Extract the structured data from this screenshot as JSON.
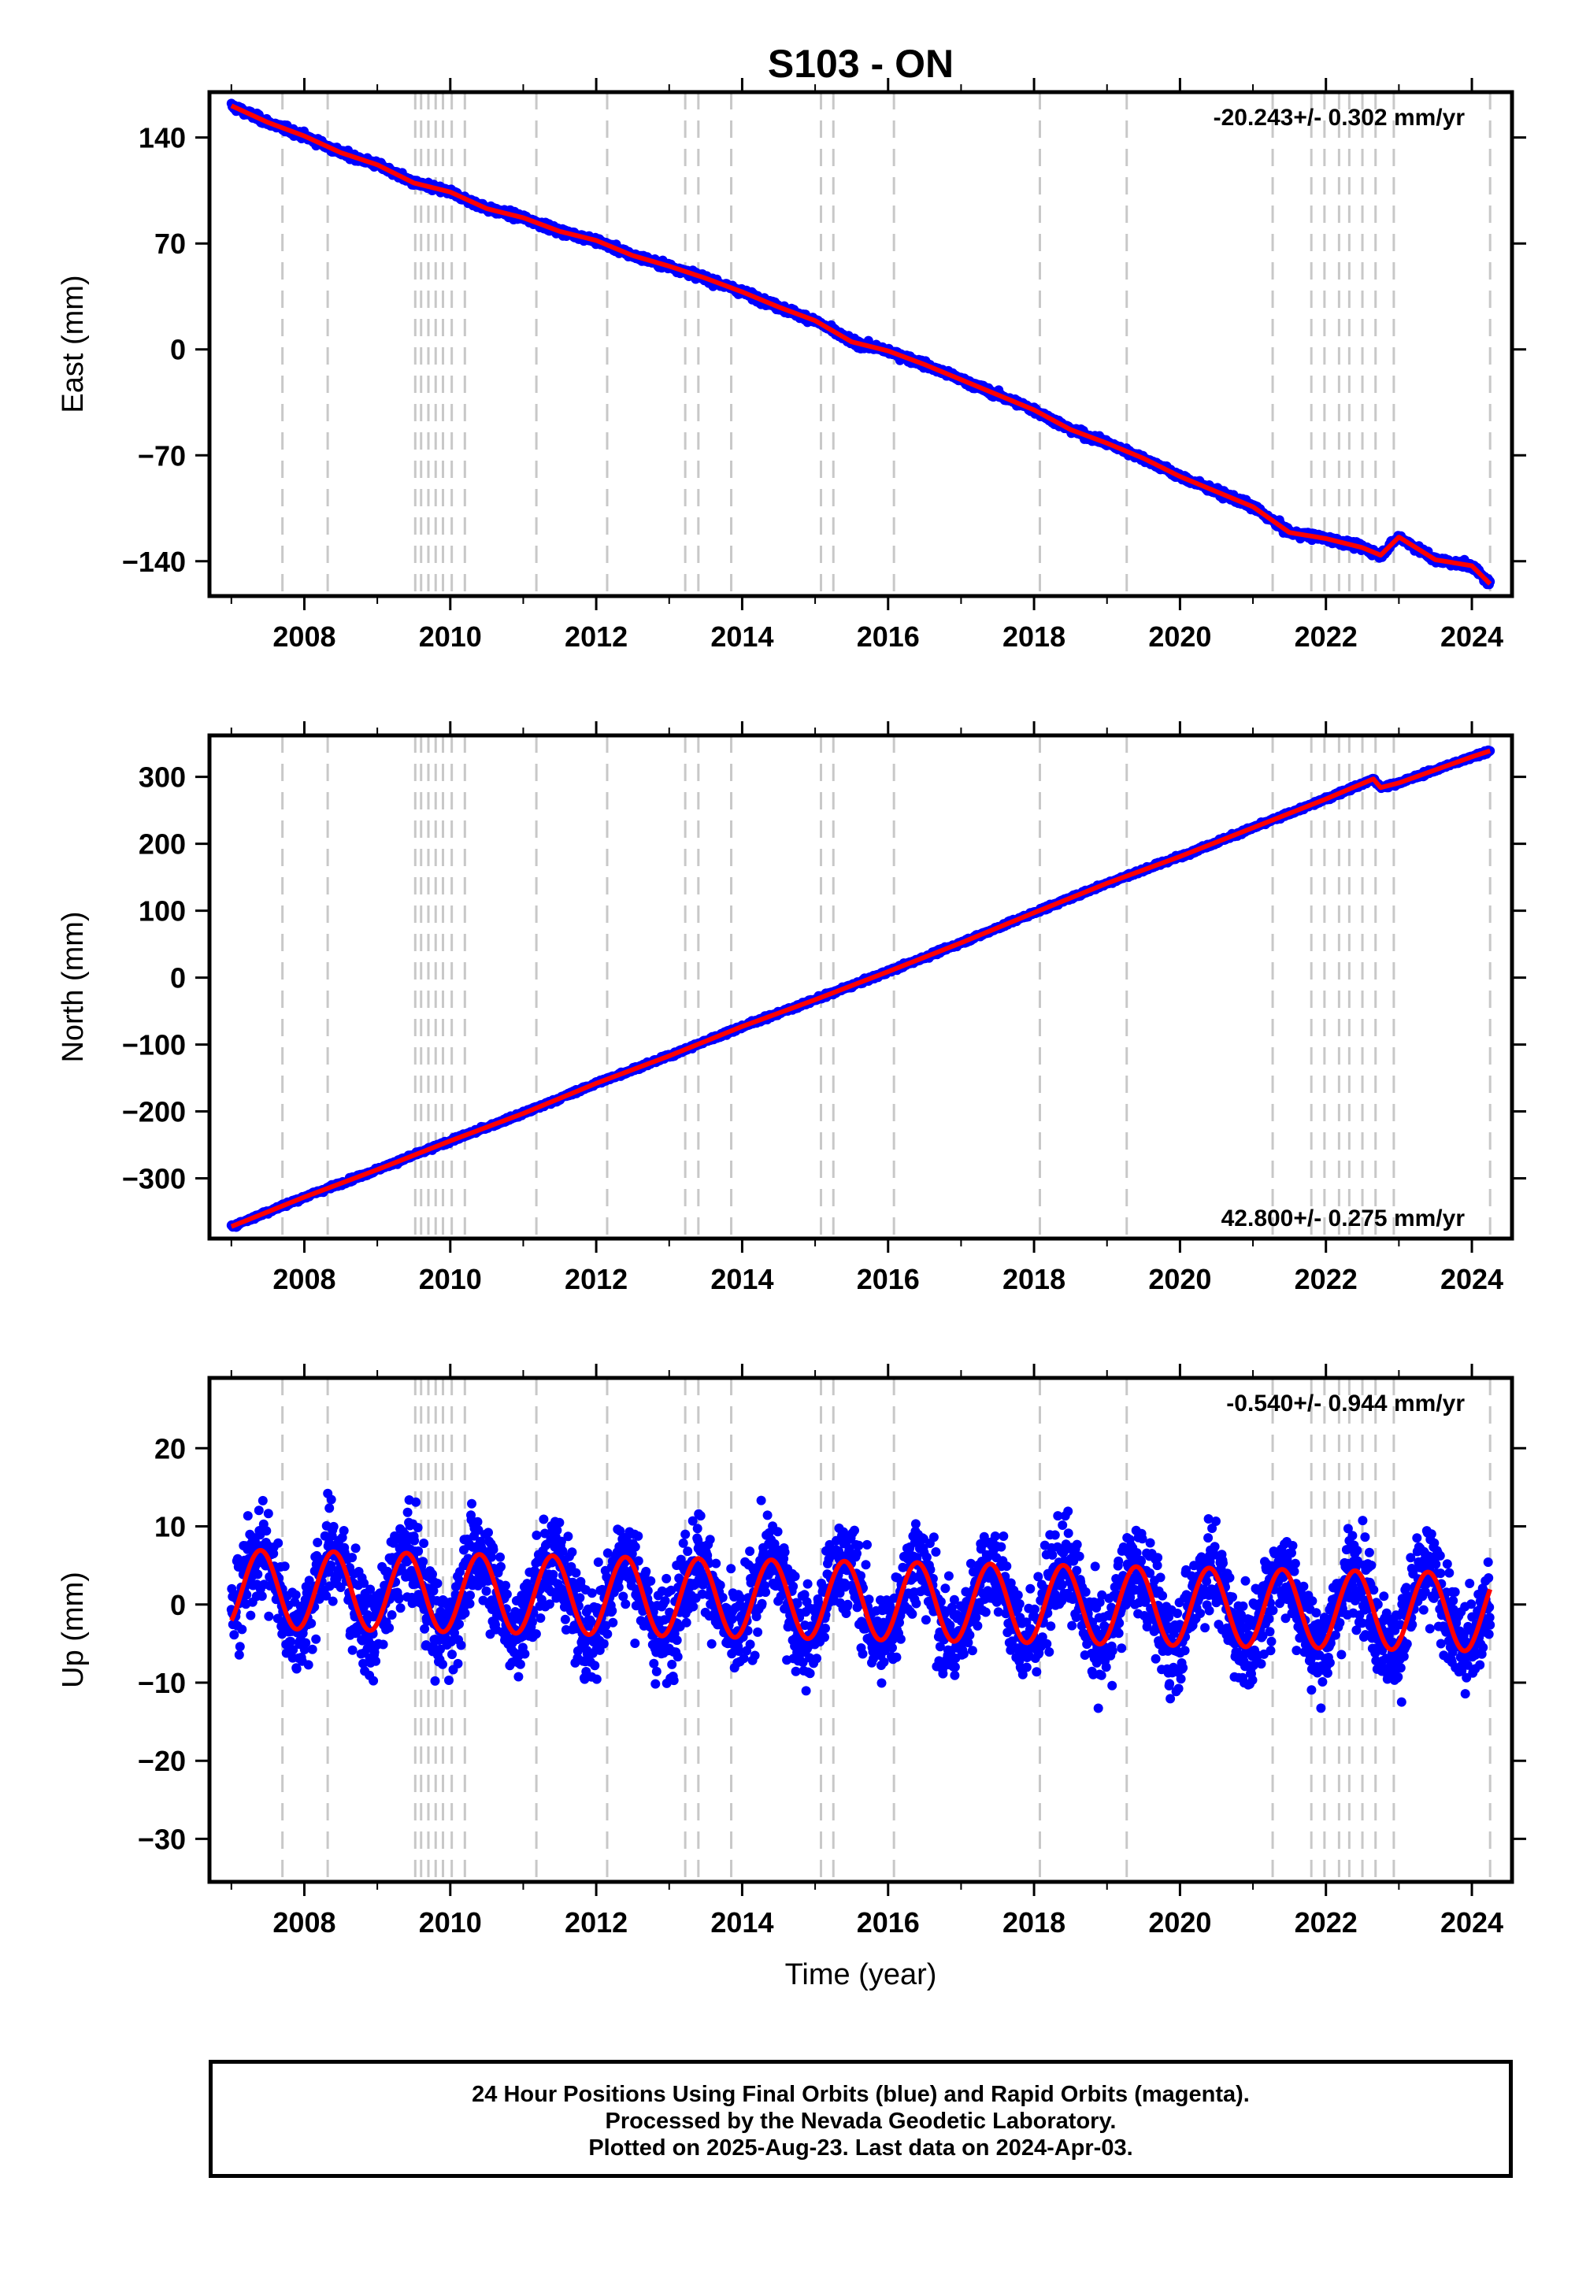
{
  "title": "S103 - ON",
  "colors": {
    "final_orbits": "#0000ff",
    "model": "#ff0000",
    "event_lines": "#c8c8c8"
  },
  "chart_data": [
    {
      "type": "scatter",
      "component": "east",
      "ylabel": "East (mm)",
      "xlabel": "",
      "xlim": [
        2006.7,
        2024.55
      ],
      "ylim": [
        -163,
        170
      ],
      "xticks": [
        2008,
        2010,
        2012,
        2014,
        2016,
        2018,
        2020,
        2022,
        2024
      ],
      "yticks": [
        140,
        70,
        0,
        -70,
        -140
      ],
      "rate_text": "-20.243+/- 0.302 mm/yr",
      "rate_position": "top-right",
      "series": [
        {
          "values_desc": "daily positions",
          "x": [
            2007.0,
            2007.5,
            2008.0,
            2008.5,
            2009.0,
            2009.5,
            2010.0,
            2010.5,
            2011.0,
            2011.5,
            2012.0,
            2012.5,
            2013.0,
            2013.5,
            2014.0,
            2014.5,
            2015.0,
            2015.5,
            2016.0,
            2016.5,
            2017.0,
            2017.5,
            2018.0,
            2018.5,
            2019.0,
            2019.5,
            2020.0,
            2020.5,
            2021.0,
            2021.5,
            2022.0,
            2022.5,
            2022.75,
            2023.0,
            2023.5,
            2024.0,
            2024.25
          ],
          "y": [
            161,
            150,
            141,
            130,
            122,
            110,
            104,
            93,
            87,
            78,
            72,
            62,
            55,
            47,
            38,
            28,
            19,
            5,
            -1,
            -10,
            -20,
            -30,
            -40,
            -53,
            -62,
            -72,
            -84,
            -94,
            -104,
            -121,
            -125,
            -131,
            -136,
            -124,
            -139,
            -143,
            -155
          ]
        }
      ]
    },
    {
      "type": "scatter",
      "component": "north",
      "ylabel": "North (mm)",
      "xlabel": "",
      "xlim": [
        2006.7,
        2024.55
      ],
      "ylim": [
        -390,
        362
      ],
      "xticks": [
        2008,
        2010,
        2012,
        2014,
        2016,
        2018,
        2020,
        2022,
        2024
      ],
      "yticks": [
        300,
        200,
        100,
        0,
        -100,
        -200,
        -300
      ],
      "rate_text": "42.800+/- 0.275 mm/yr",
      "rate_position": "bottom-right",
      "series": [
        {
          "x": [
            2007.0,
            2008.0,
            2009.0,
            2010.0,
            2011.0,
            2012.0,
            2013.0,
            2014.0,
            2015.0,
            2016.0,
            2017.0,
            2018.0,
            2019.0,
            2020.0,
            2021.0,
            2022.0,
            2022.65,
            2022.75,
            2023.0,
            2024.0,
            2024.25
          ],
          "y": [
            -372,
            -328,
            -287,
            -244,
            -203,
            -158,
            -117,
            -73,
            -33,
            9,
            52,
            97,
            141,
            181,
            224,
            267,
            297,
            284,
            291,
            330,
            339
          ]
        }
      ]
    },
    {
      "type": "scatter",
      "component": "up",
      "ylabel": "Up (mm)",
      "xlabel": "Time (year)",
      "xlim": [
        2006.7,
        2024.55
      ],
      "ylim": [
        -35.5,
        29
      ],
      "xticks": [
        2008,
        2010,
        2012,
        2014,
        2016,
        2018,
        2020,
        2022,
        2024
      ],
      "yticks": [
        20,
        10,
        0,
        -10,
        -20,
        -30
      ],
      "rate_text": "-0.540+/- 0.944 mm/yr",
      "rate_position": "top-right",
      "seasonal_amplitude_mm": 5,
      "series": [
        {
          "x": [
            2007.0,
            2024.25
          ],
          "y": [
            2,
            -1
          ]
        }
      ]
    }
  ],
  "event_lines": [
    2007.7,
    2008.32,
    2009.52,
    2009.6,
    2009.7,
    2009.8,
    2009.9,
    2010.02,
    2010.2,
    2011.18,
    2012.15,
    2013.22,
    2013.4,
    2013.85,
    2015.08,
    2015.25,
    2016.08,
    2018.08,
    2019.27,
    2021.27,
    2021.8,
    2021.98,
    2022.18,
    2022.32,
    2022.5,
    2022.68,
    2022.93,
    2024.25
  ],
  "footer": {
    "line1": "24 Hour Positions Using Final Orbits (blue) and Rapid Orbits (magenta).",
    "line2": "Processed by the Nevada Geodetic Laboratory.",
    "line3": "Plotted on 2025-Aug-23. Last data on 2024-Apr-03."
  }
}
